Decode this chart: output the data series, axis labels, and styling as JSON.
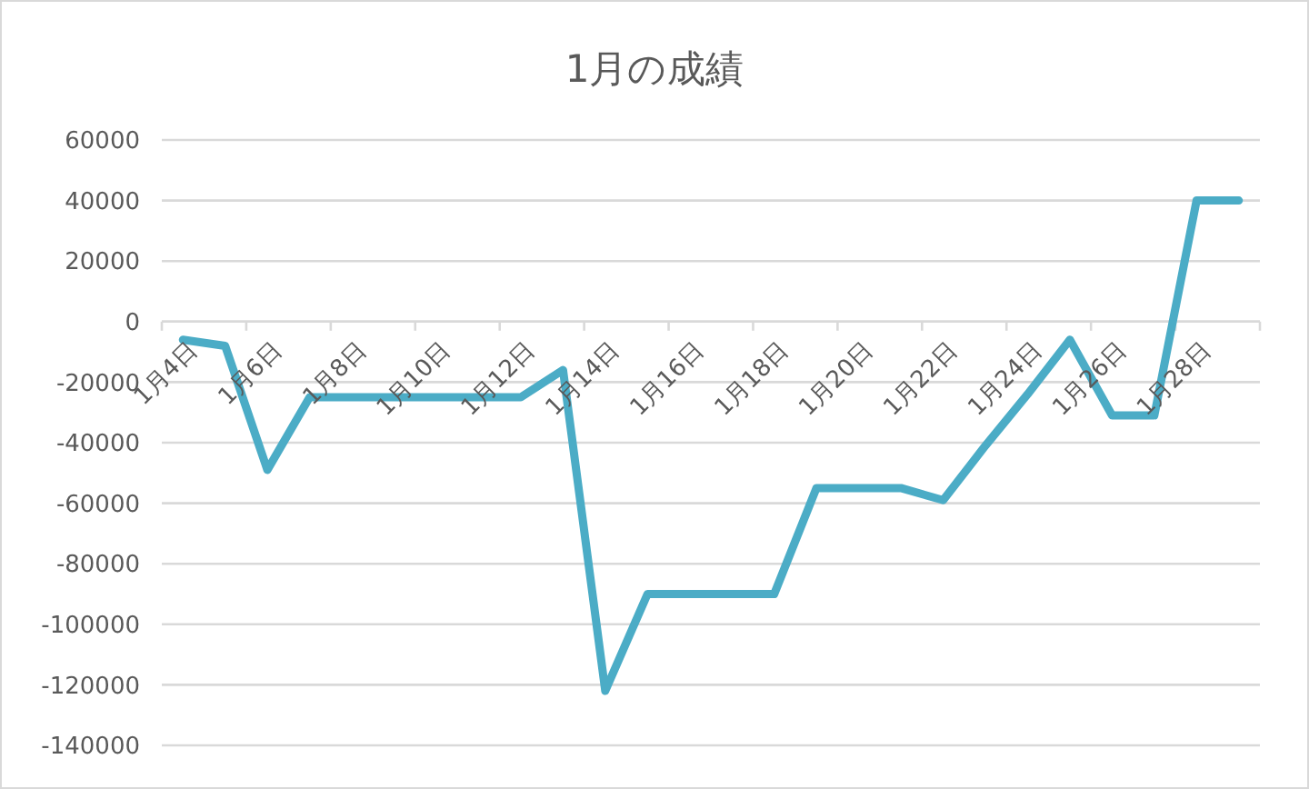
{
  "chart_data": {
    "type": "line",
    "title": "1月の成績",
    "categories": [
      "1月4日",
      null,
      "1月6日",
      null,
      "1月8日",
      null,
      "1月10日",
      null,
      "1月12日",
      null,
      "1月14日",
      null,
      "1月16日",
      null,
      "1月18日",
      null,
      "1月20日",
      null,
      "1月22日",
      null,
      "1月24日",
      null,
      "1月26日",
      null,
      "1月28日",
      null
    ],
    "series": [
      {
        "color": "#4bacc6",
        "values": [
          -6000,
          -8000,
          -49000,
          -25000,
          -25000,
          -25000,
          -25000,
          -25000,
          -25000,
          -16000,
          -122000,
          -90000,
          -90000,
          -90000,
          -90000,
          -55000,
          -55000,
          -55000,
          -59000,
          -41000,
          -24000,
          -6000,
          -31000,
          -31000,
          40000,
          40000
        ]
      }
    ],
    "ylim": [
      -140000,
      60000
    ],
    "yticks": [
      -140000,
      -120000,
      -100000,
      -80000,
      -60000,
      -40000,
      -20000,
      0,
      20000,
      40000,
      60000
    ],
    "grid": "y",
    "marker": "none",
    "line_style": "solid"
  }
}
